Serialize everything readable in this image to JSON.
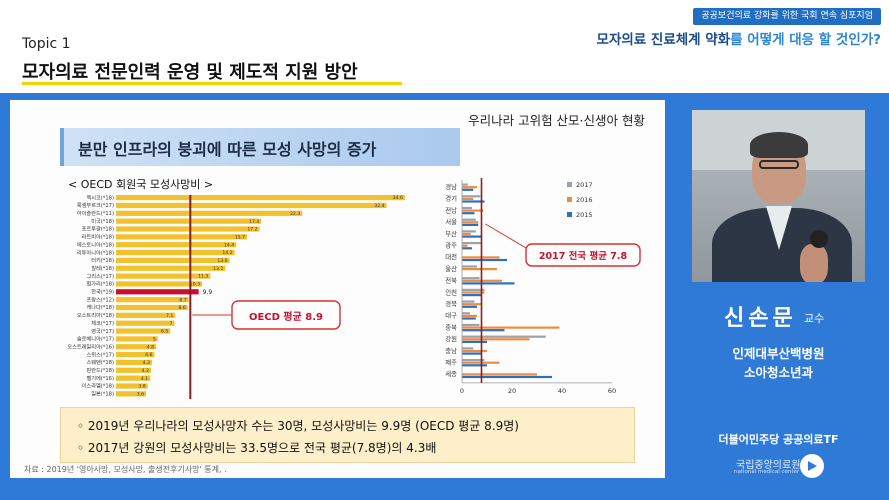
{
  "header": {
    "event_badge": "공공보건의료 강화를 위한 국회 연속 심포지엄",
    "event_title_a": "모자의료 진료체계 약화",
    "event_title_b": "를 어떻게 대응 할 것인가?",
    "topic_label": "Topic 1",
    "topic_title": "모자의료 전문인력 운영 및 제도적 지원 방안"
  },
  "slide": {
    "header": "우리나라 고위험 산모·신생아 현황",
    "title": "분만 인프라의 붕괴에 따른 모성 사망의 증가",
    "summary_1": "◦ 2019년 우리나라의 모성사망자 수는 30명, 모성사망비는 9.9명 (OECD 평균 8.9명)",
    "summary_2": "◦ 2017년 강원의 모성사망비는 33.5명으로 전국 평균(7.8명)의 4.3배",
    "source": "자료 : 2019년 '영아사망, 모성사망, 출생전후기사망' 통계, ."
  },
  "speaker": {
    "name": "신손문",
    "title": "교수",
    "affiliation_1": "인제대부산백병원",
    "affiliation_2": "소아청소년과",
    "host": "더불어민주당 공공의료TF"
  },
  "footer": {
    "org_name": "국립중앙의료원",
    "org_sub": "national medical center"
  },
  "colors": {
    "stage": "#2f7ad6",
    "bar": "#f2c12e",
    "korea_bar": "#c8102e",
    "avg_line": "#8b1e1e",
    "series_2017": "#9aa3ad",
    "series_2016": "#f28a3c",
    "series_2015": "#2f6fc0"
  },
  "chart_data": [
    {
      "type": "bar",
      "title": "< OECD 회원국 모성사망비 >",
      "orientation": "horizontal",
      "categories": [
        "멕시코(*18)",
        "룩셈부르크(*17)",
        "아이슬란드(*11)",
        "미국(*18)",
        "포르투갈(*18)",
        "라트비아(*18)",
        "에스토니아(*18)",
        "리투아니아(*18)",
        "터키(*18)",
        "칠레(*18)",
        "그리스(*17)",
        "헝가리(*18)",
        "한국(*19)",
        "프랑스(*12)",
        "캐나다(*18)",
        "오스트리아(*18)",
        "체코(*17)",
        "영국(*17)",
        "슬로베니아(*17)",
        "오스트레일리아(*16)",
        "스위스(*17)",
        "스웨덴(*18)",
        "핀란드(*18)",
        "벨기에(*16)",
        "이스라엘(*18)",
        "일본(*18)"
      ],
      "values": [
        34.6,
        32.4,
        22.3,
        17.4,
        17.2,
        15.7,
        14.4,
        14.2,
        13.6,
        13.1,
        11.3,
        10.3,
        9.9,
        8.7,
        8.6,
        7.1,
        7.0,
        6.5,
        5.0,
        4.8,
        4.6,
        4.3,
        4.2,
        4.1,
        3.8,
        3.6
      ],
      "highlight": "한국(*19)",
      "reference_line": {
        "label": "OECD 평균 8.9",
        "value": 8.9
      }
    },
    {
      "type": "bar",
      "orientation": "horizontal",
      "categories": [
        "경남",
        "경기",
        "전남",
        "서울",
        "부산",
        "광주",
        "대전",
        "울산",
        "전북",
        "인천",
        "경북",
        "대구",
        "충북",
        "강원",
        "충남",
        "제주",
        "세종"
      ],
      "series": [
        {
          "name": "2017",
          "values": [
            2.3,
            7.3,
            4.0,
            5.5,
            5.5,
            8.0,
            0.0,
            6.0,
            7.0,
            9.0,
            5.0,
            3.2,
            7.0,
            33.5,
            4.5,
            9.0,
            0.0
          ]
        },
        {
          "name": "2016",
          "values": [
            6.0,
            4.5,
            8.5,
            6.5,
            3.5,
            2.2,
            15.0,
            14.0,
            16.0,
            9.0,
            7.5,
            6.0,
            39.0,
            27.0,
            10.0,
            15.0,
            30.0
          ]
        },
        {
          "name": "2015",
          "values": [
            4.5,
            9.0,
            5.0,
            6.5,
            8.0,
            4.0,
            18.0,
            0.0,
            21.0,
            8.0,
            6.0,
            5.5,
            17.0,
            10.0,
            8.0,
            10.0,
            36.0
          ]
        }
      ],
      "xlim": [
        0,
        60
      ],
      "x_ticks": [
        "0",
        "20",
        "40",
        "60"
      ],
      "reference_line": {
        "label": "2017 전국 평균 7.8",
        "value": 7.8
      }
    }
  ]
}
